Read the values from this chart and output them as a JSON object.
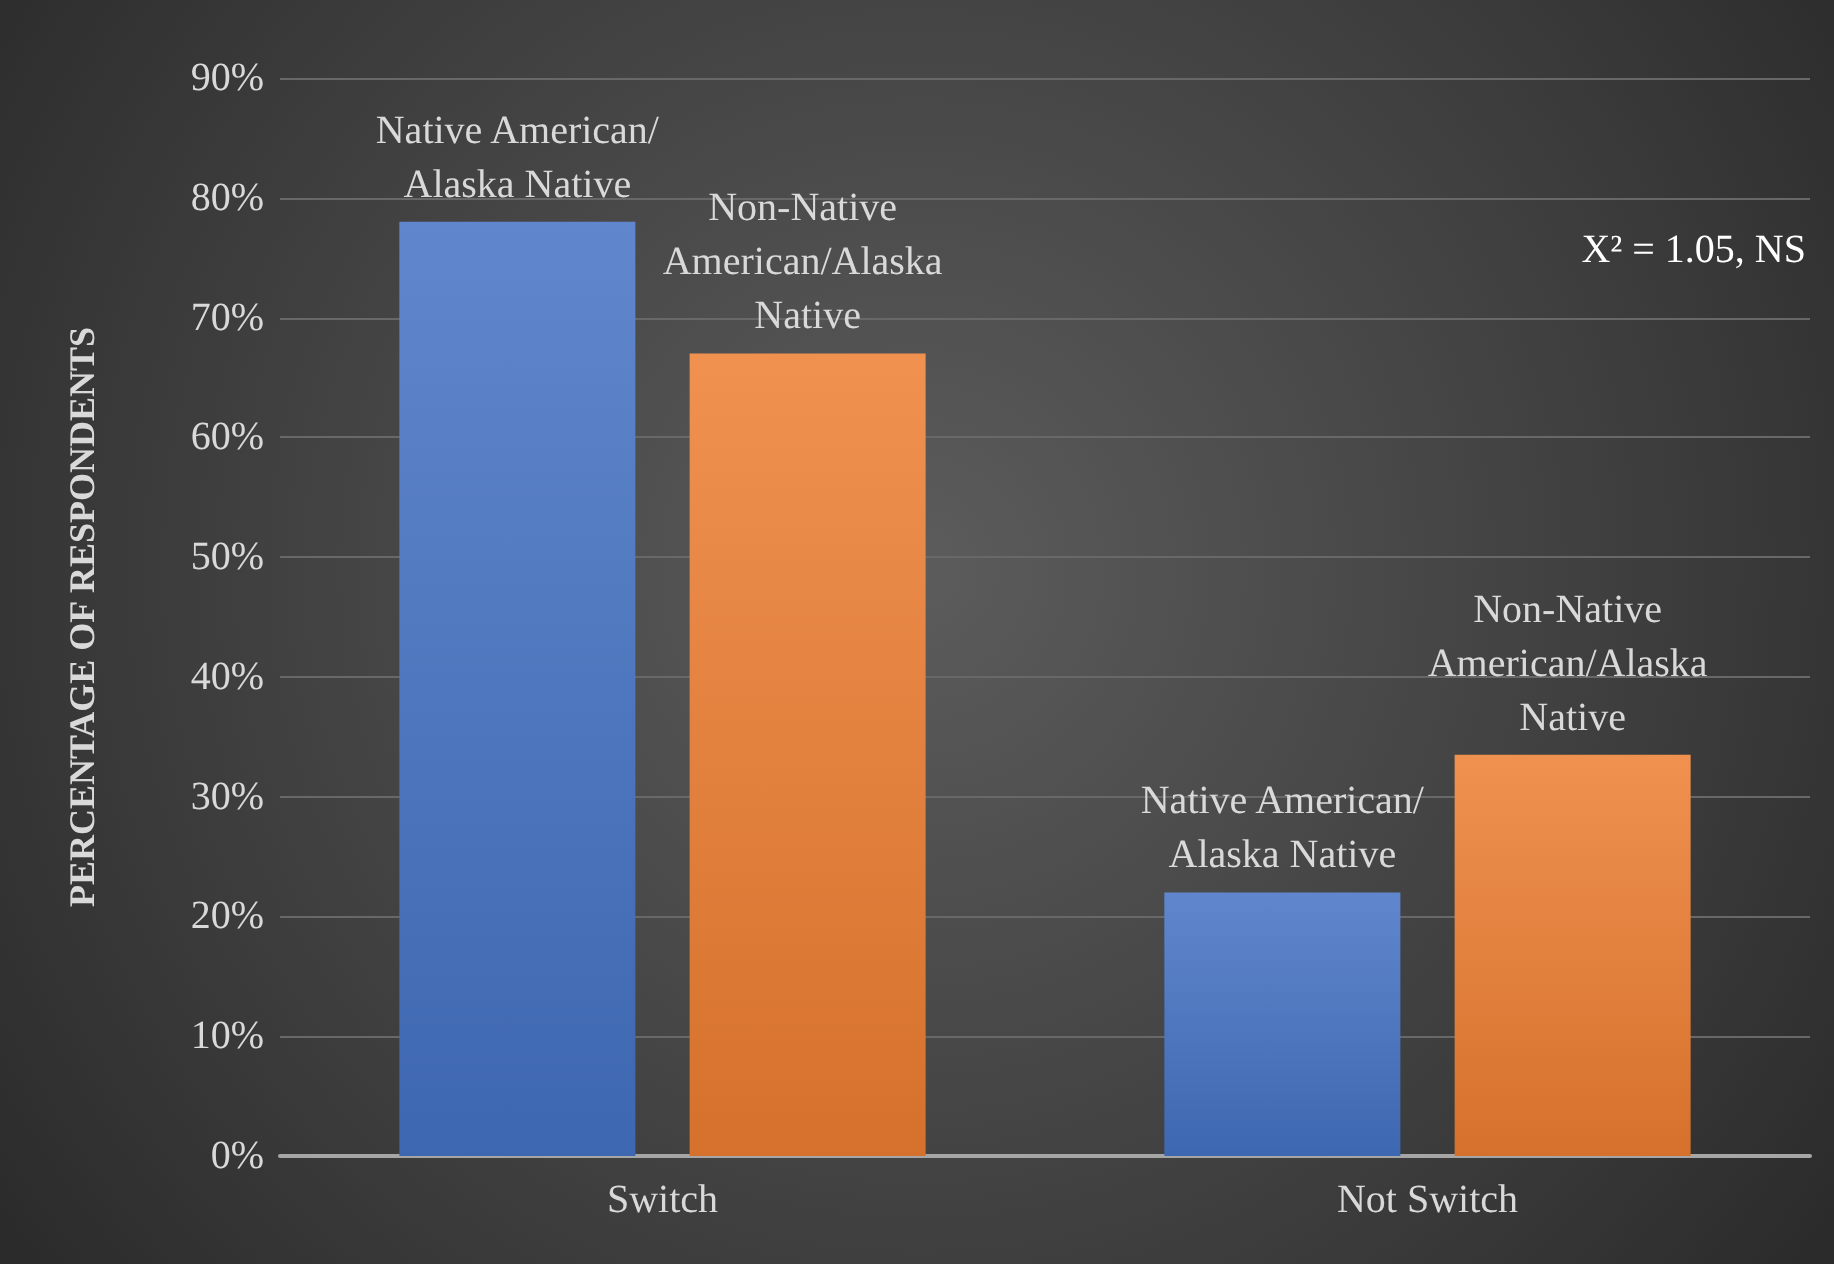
{
  "chart_data": {
    "type": "bar",
    "ylabel": "PERCENTAGE OF RESPONDENTS",
    "categories": [
      "Switch",
      "Not Switch"
    ],
    "series": [
      {
        "name": "Native American/Alaska Native",
        "color": "#4472c4",
        "values": [
          78,
          22
        ]
      },
      {
        "name": "Non-Native American/Alaska Native",
        "color": "#ed7d31",
        "values": [
          67,
          33.5
        ]
      }
    ],
    "ylim": [
      0,
      90
    ],
    "yticks": [
      {
        "value": 0,
        "label": "0%"
      },
      {
        "value": 10,
        "label": "10%"
      },
      {
        "value": 20,
        "label": "20%"
      },
      {
        "value": 30,
        "label": "30%"
      },
      {
        "value": 40,
        "label": "40%"
      },
      {
        "value": 50,
        "label": "50%"
      },
      {
        "value": 60,
        "label": "60%"
      },
      {
        "value": 70,
        "label": "70%"
      },
      {
        "value": 80,
        "label": "80%"
      },
      {
        "value": 90,
        "label": "90%"
      }
    ],
    "grid": "y",
    "legend": false,
    "annotations": [
      "X² = 1.05, NS"
    ]
  }
}
